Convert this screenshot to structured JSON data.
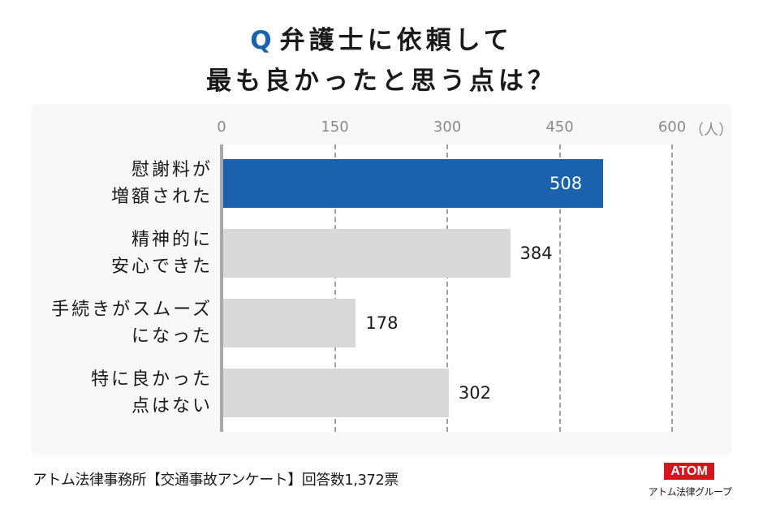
{
  "title": {
    "q_mark": "Q",
    "line1": "弁護士に依頼して",
    "line2": "最も良かったと思う点は？"
  },
  "axis": {
    "ticks": [
      "0",
      "150",
      "300",
      "450",
      "600"
    ],
    "unit": "（人）"
  },
  "bars": [
    {
      "label_line1": "慰謝料が",
      "label_line2": "増額された",
      "value": "508"
    },
    {
      "label_line1": "精神的に",
      "label_line2": "安心できた",
      "value": "384"
    },
    {
      "label_line1": "手続きがスムーズ",
      "label_line2": "になった",
      "value": "178"
    },
    {
      "label_line1": "特に良かった",
      "label_line2": "点はない",
      "value": "302"
    }
  ],
  "footer": {
    "source": "アトム法律事務所【交通事故アンケート】回答数1,372票",
    "logo_text": "ATOM",
    "logo_sub": "アトム法律グループ"
  },
  "colors": {
    "highlight": "#1a62ad",
    "bar": "#d9d9d9",
    "logo_red": "#d7141b"
  },
  "chart_data": {
    "type": "bar",
    "orientation": "horizontal",
    "title": "Q 弁護士に依頼して最も良かったと思う点は？",
    "categories": [
      "慰謝料が増額された",
      "精神的に安心できた",
      "手続きがスムーズになった",
      "特に良かった点はない"
    ],
    "values": [
      508,
      384,
      178,
      302
    ],
    "xlabel": "（人）",
    "ylabel": "",
    "xlim": [
      0,
      600
    ],
    "xticks": [
      0,
      150,
      300,
      450,
      600
    ],
    "grid": "vertical dashed",
    "highlight_index": 0,
    "data_labels": true,
    "note": "アトム法律事務所【交通事故アンケート】回答数1,372票"
  }
}
